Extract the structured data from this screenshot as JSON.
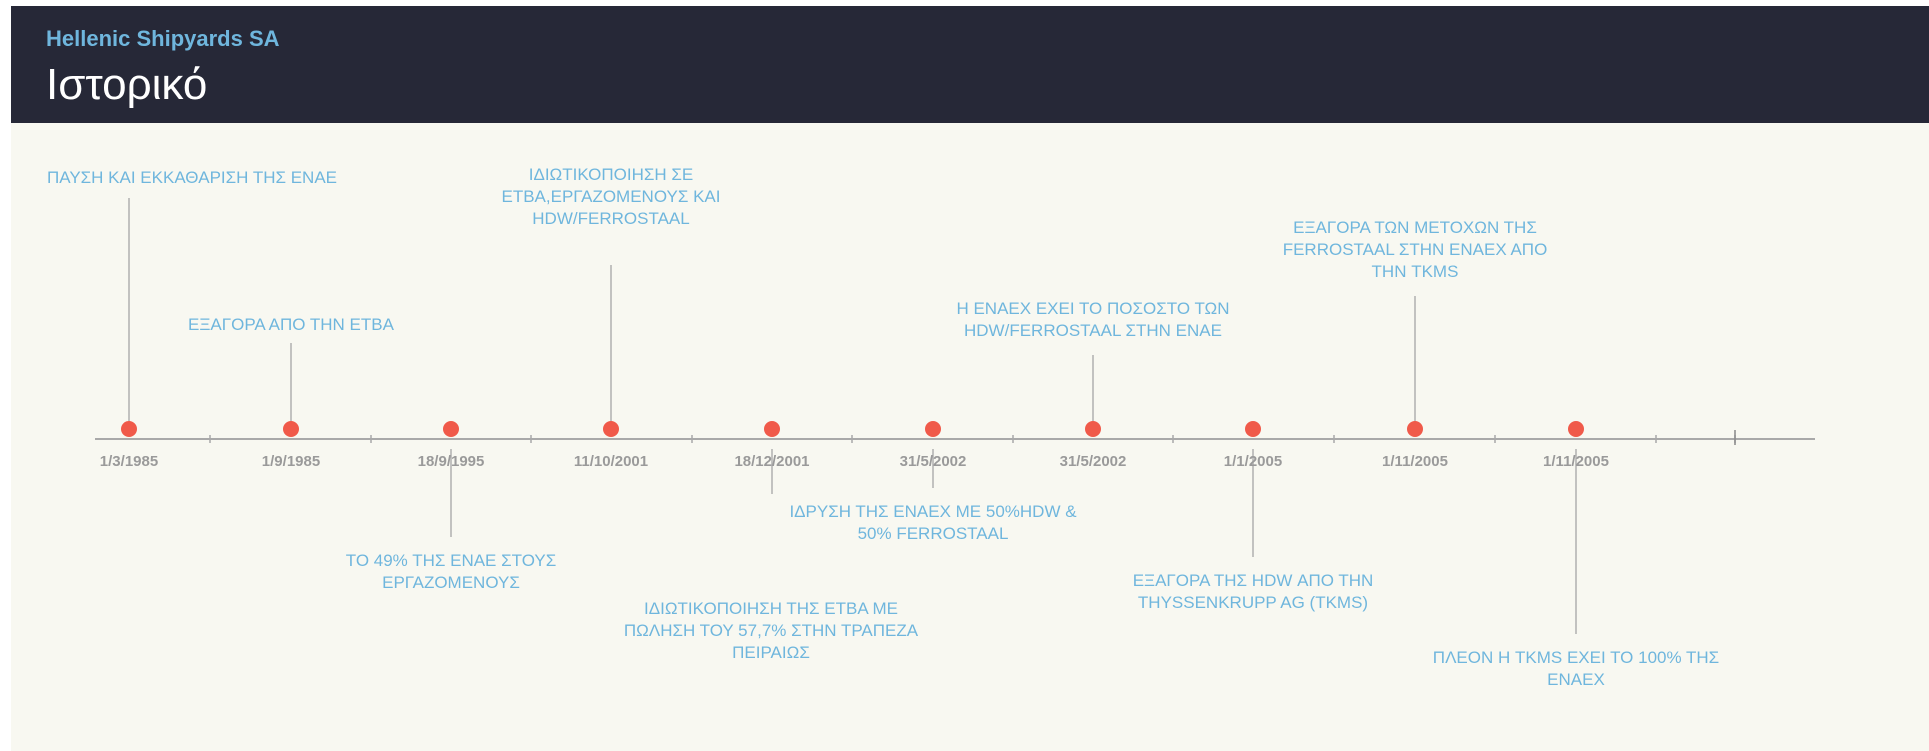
{
  "header": {
    "company": "Hellenic Shipyards SA",
    "title": "Ιστορικό"
  },
  "colors": {
    "header_bg": "#262837",
    "accent": "#6fb6dd",
    "marker": "#f05a4a",
    "axis": "#a9a9a9",
    "canvas_bg": "#f8f8f1"
  },
  "timeline": {
    "events": [
      {
        "date": "1/3/1985",
        "side": "above",
        "lines": [
          "ΠΑΥΣΗ ΚΑΙ ΕΚΚΑΘΑΡΙΣΗ ΤΗΣ ΕΝΑΕ"
        ]
      },
      {
        "date": "1/9/1985",
        "side": "above",
        "lines": [
          "ΕΞΑΓΟΡΑ ΑΠΟ ΤΗΝ ΕΤΒΑ"
        ]
      },
      {
        "date": "18/9/1995",
        "side": "below",
        "lines": [
          "ΤΟ 49% ΤΗΣ ΕΝΑΕ ΣΤΟΥΣ",
          "ΕΡΓΑΖΟΜΕΝΟΥΣ"
        ]
      },
      {
        "date": "11/10/2001",
        "side": "above",
        "lines": [
          "ΙΔΙΩΤΙΚΟΠΟΙΗΣΗ ΣΕ",
          "ΕΤΒΑ,ΕΡΓΑΖΟΜΕΝΟΥΣ ΚΑΙ",
          "HDW/FERROSTAAL"
        ]
      },
      {
        "date": "18/12/2001",
        "side": "below",
        "lines": [
          "ΙΔΙΩΤΙΚΟΠΟΙΗΣΗ ΤΗΣ ΕΤΒΑ ΜΕ",
          "ΠΩΛΗΣΗ ΤΟΥ 57,7% ΣΤΗΝ ΤΡΑΠΕΖΑ",
          "ΠΕΙΡΑΙΩΣ"
        ]
      },
      {
        "date": "31/5/2002",
        "side": "below",
        "lines": [
          "ΙΔΡΥΣΗ ΤΗΣ ΕΝΑΕΧ ΜΕ 50%HDW &",
          "50% FERROSTAAL"
        ]
      },
      {
        "date": "31/5/2002",
        "side": "above",
        "lines": [
          "Η ΕΝΑΕΧ ΕΧΕΙ ΤΟ ΠΟΣΟΣΤΟ ΤΩΝ",
          "HDW/FERROSTAAL ΣΤΗΝ ΕΝΑΕ"
        ]
      },
      {
        "date": "1/1/2005",
        "side": "below",
        "lines": [
          "ΕΞΑΓΟΡΑ ΤΗΣ HDW ΑΠΟ ΤΗΝ",
          "THYSSENKRUPP AG (TKMS)"
        ]
      },
      {
        "date": "1/11/2005",
        "side": "above",
        "lines": [
          "ΕΞΑΓΟΡΑ ΤΩΝ ΜΕΤΟΧΩΝ ΤΗΣ",
          "FERROSTAAL ΣΤΗΝ ΕΝΑΕΧ ΑΠΟ",
          "ΤΗΝ TKMS"
        ]
      },
      {
        "date": "1/11/2005",
        "side": "below",
        "lines": [
          "ΠΛΕΟΝ Η TKMS ΕΧΕΙ ΤΟ 100% ΤΗΣ",
          "ΕΝΑΕΧ"
        ]
      }
    ]
  }
}
